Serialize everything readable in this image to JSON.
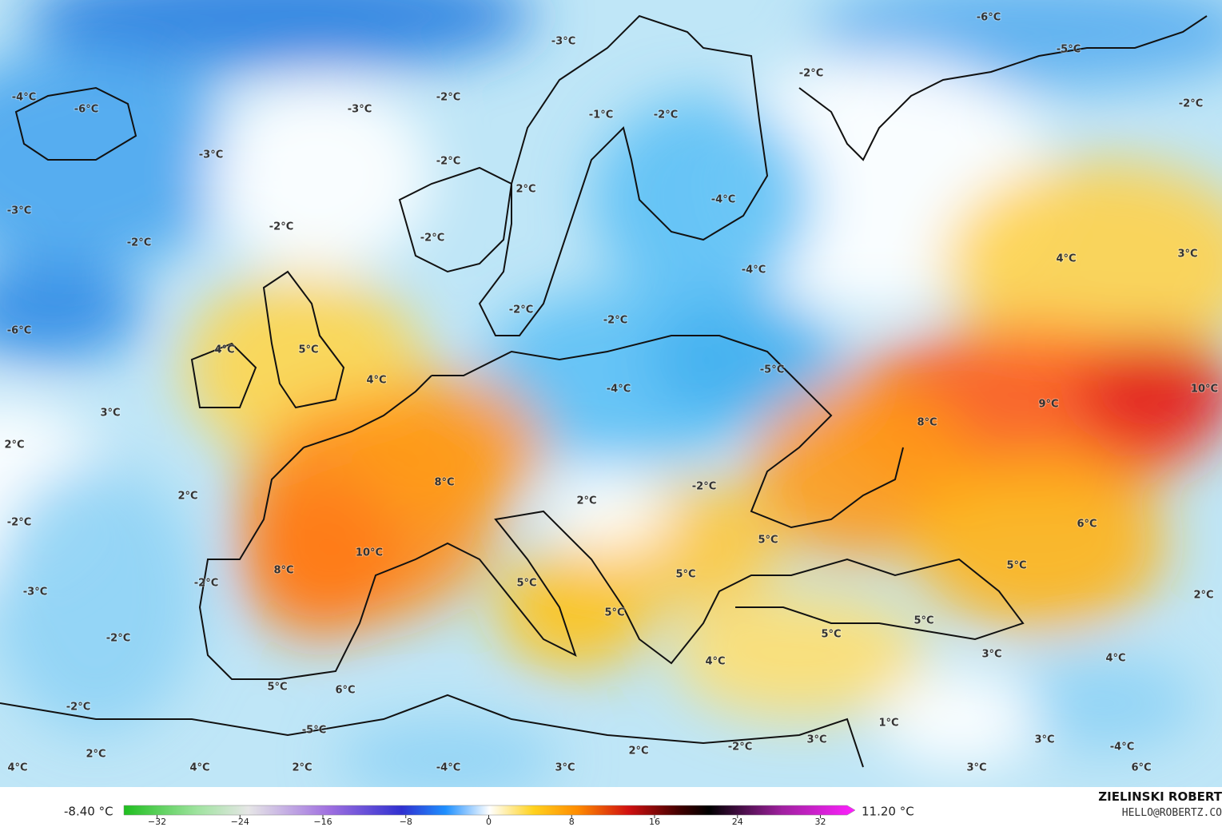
{
  "map": {
    "labels": [
      "-6°C",
      "-5°C",
      "-2°C",
      "-2°C",
      "-3°C",
      "-2°C",
      "-1°C",
      "-2°C",
      "-3°C",
      "-6°C",
      "-4°C",
      "-3°C",
      "-2°C",
      "2°C",
      "-4°C",
      "-3°C",
      "-2°C",
      "-2°C",
      "-2°C",
      "4°C",
      "3°C",
      "-4°C",
      "-2°C",
      "-2°C",
      "-6°C",
      "4°C",
      "5°C",
      "-5°C",
      "4°C",
      "-4°C",
      "10°C",
      "9°C",
      "3°C",
      "8°C",
      "2°C",
      "8°C",
      "-2°C",
      "2°C",
      "2°C",
      "-2°C",
      "6°C",
      "5°C",
      "10°C",
      "8°C",
      "5°C",
      "5°C",
      "-2°C",
      "5°C",
      "-3°C",
      "2°C",
      "5°C",
      "5°C",
      "5°C",
      "-2°C",
      "3°C",
      "4°C",
      "4°C",
      "5°C",
      "6°C",
      "-2°C",
      "1°C",
      "-5°C",
      "3°C",
      "3°C",
      "-2°C",
      "-4°C",
      "2°C",
      "2°C",
      "4°C",
      "4°C",
      "2°C",
      "-4°C",
      "3°C",
      "3°C",
      "6°C"
    ]
  },
  "colorbar": {
    "min_label": "-8.40 °C",
    "max_label": "11.20 °C",
    "xlim": [
      -35.2,
      35.2
    ],
    "ticks": [
      {
        "value": -32,
        "label": "−32"
      },
      {
        "value": -24,
        "label": "−24"
      },
      {
        "value": -16,
        "label": "−16"
      },
      {
        "value": -8,
        "label": "−8"
      },
      0,
      8,
      16,
      24,
      32
    ]
  },
  "credit": {
    "name": "ZIELINSKI ROBERT",
    "site": "HELLO@ROBERTZ.CO"
  }
}
